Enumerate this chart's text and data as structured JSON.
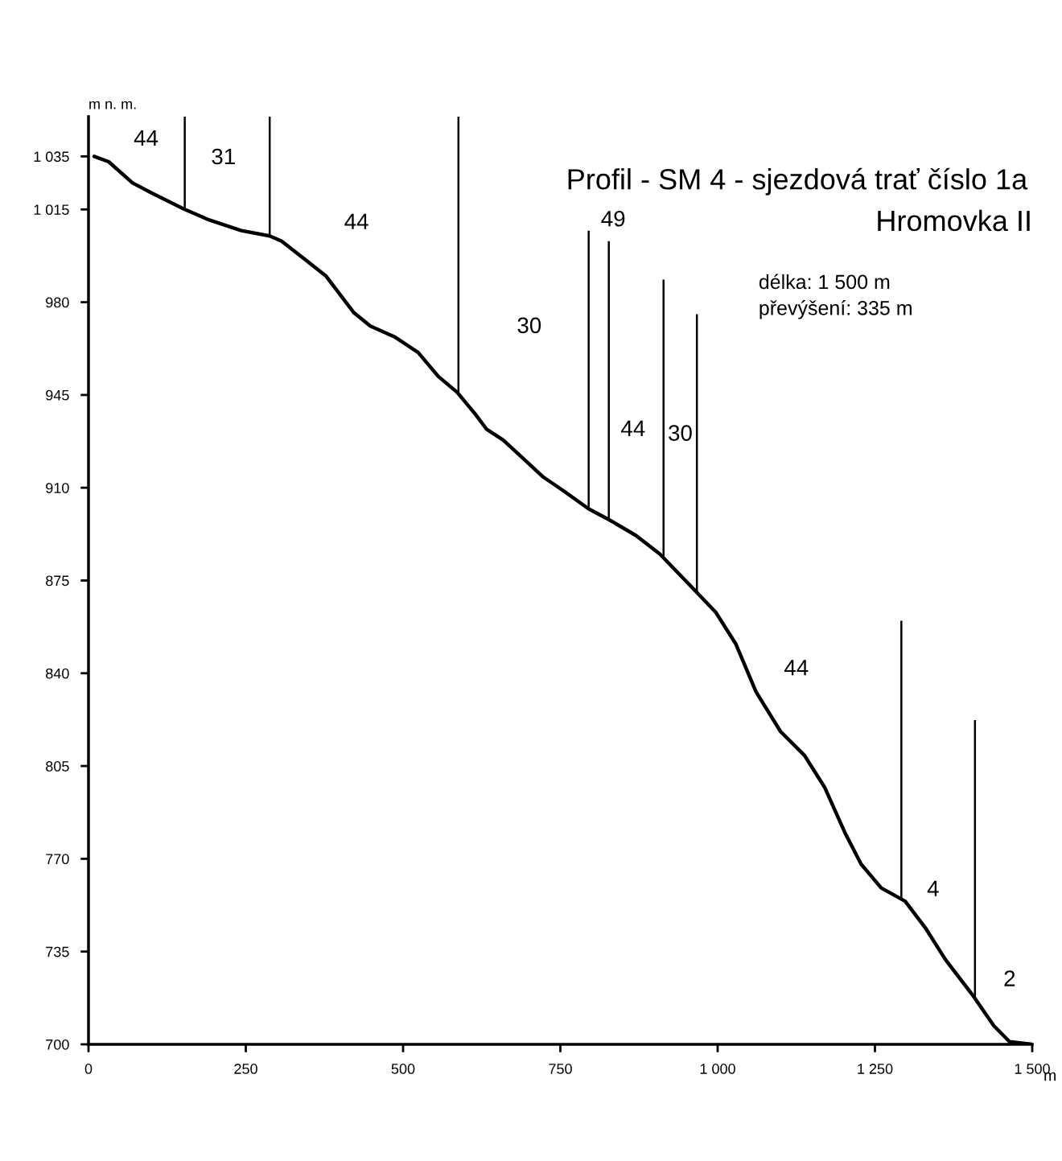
{
  "chart_data": {
    "type": "line",
    "title": "Profil - SM 4 - sjezdová trať číslo 1a",
    "subtitle": "Hromovka II",
    "ylabel": "m n. m.",
    "xlabel": "m",
    "x": [
      9,
      32,
      70,
      102,
      153,
      192,
      243,
      288,
      307,
      345,
      377,
      422,
      448,
      486,
      524,
      556,
      586,
      614,
      633,
      659,
      691,
      723,
      754,
      795,
      827,
      870,
      908,
      965,
      997,
      1029,
      1061,
      1100,
      1138,
      1170,
      1202,
      1228,
      1260,
      1298,
      1330,
      1362,
      1407,
      1439,
      1464,
      1500
    ],
    "series": [
      {
        "color": "#000000",
        "values": [
          1035,
          1033,
          1025,
          1021,
          1015,
          1011,
          1007,
          1005,
          1003,
          996,
          990,
          976,
          971,
          967,
          961,
          952,
          946,
          938,
          932,
          928,
          921,
          914,
          909,
          902,
          898,
          892,
          885,
          871,
          863,
          851,
          833,
          818,
          809,
          797,
          780,
          768,
          759,
          754,
          744,
          732,
          718,
          707,
          701,
          700
        ]
      }
    ],
    "xlim": [
      0,
      1500
    ],
    "ylim": [
      700,
      1050
    ],
    "xticks": [
      0,
      250,
      500,
      750,
      {
        "value": 1000,
        "label": "1 000"
      },
      {
        "value": 1250,
        "label": "1 250"
      },
      {
        "value": 1500,
        "label": "1 500"
      }
    ],
    "yticks": [
      700,
      735,
      770,
      805,
      840,
      875,
      910,
      945,
      980,
      {
        "value": 1015,
        "label": "1 015"
      },
      {
        "value": 1035,
        "label": "1 035"
      }
    ],
    "grid": false,
    "legend": false,
    "marker": "none",
    "line_style": "solid",
    "ref_lines": [
      {
        "axis": "x",
        "value": 153,
        "color": "#000000"
      },
      {
        "axis": "x",
        "value": 288,
        "color": "#000000"
      },
      {
        "axis": "x",
        "value": 588,
        "color": "#000000"
      },
      {
        "axis": "x",
        "value": 795,
        "color": "#000000"
      },
      {
        "axis": "x",
        "value": 827,
        "color": "#000000"
      },
      {
        "axis": "x",
        "value": 914,
        "color": "#000000"
      },
      {
        "axis": "x",
        "value": 967,
        "color": "#000000"
      },
      {
        "axis": "x",
        "value": 1292,
        "color": "#000000"
      },
      {
        "axis": "x",
        "value": 1409,
        "color": "#000000"
      }
    ],
    "annotations": [
      "44",
      "31",
      "44",
      "30",
      "49",
      "44",
      "30",
      "44",
      "4",
      "2",
      "délka: 1 500 m",
      "převýšení: 335 m"
    ]
  }
}
